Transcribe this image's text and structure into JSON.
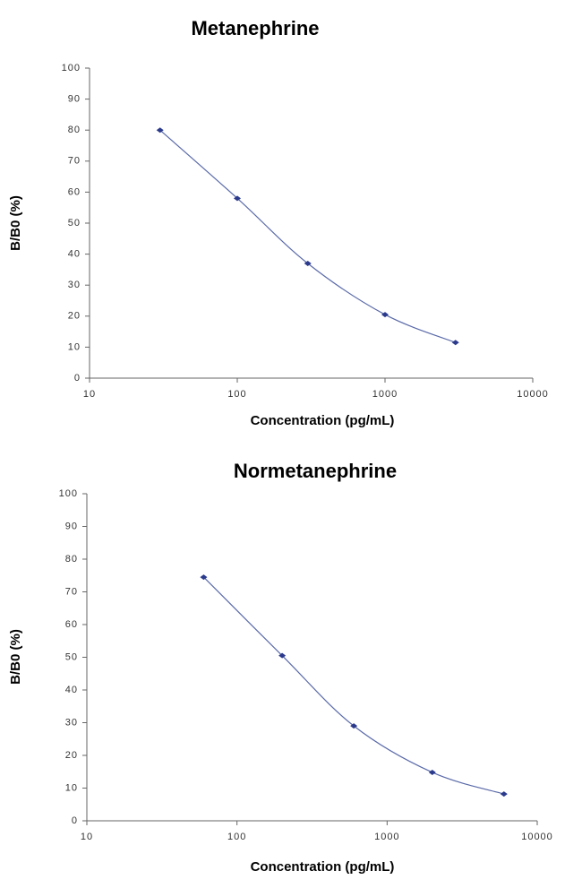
{
  "chart_data": [
    {
      "type": "line",
      "title": "Metanephrine",
      "x_label": "Concentration (pg/mL)",
      "y_label": "B/B0 (%)",
      "x": [
        30,
        100,
        300,
        1000,
        3000
      ],
      "values": [
        80,
        58,
        37,
        20.5,
        11.5
      ],
      "color": "#2b3a8c",
      "xscale": "log",
      "xlim": [
        10,
        10000
      ],
      "xticks": [
        10,
        100,
        1000,
        10000
      ],
      "ylim": [
        0,
        100
      ],
      "yticks": [
        0,
        10,
        20,
        30,
        40,
        50,
        60,
        70,
        80,
        90,
        100
      ],
      "grid": false
    },
    {
      "type": "line",
      "title": "Normetanephrine",
      "x_label": "Concentration (pg/mL)",
      "y_label": "B/B0 (%)",
      "x": [
        60,
        200,
        600,
        2000,
        6000
      ],
      "values": [
        74.5,
        50.5,
        29,
        14.8,
        8.2
      ],
      "color": "#2b3a8c",
      "xscale": "log",
      "xlim": [
        10,
        10000
      ],
      "xticks": [
        10,
        100,
        1000,
        10000
      ],
      "ylim": [
        0,
        100
      ],
      "yticks": [
        0,
        10,
        20,
        30,
        40,
        50,
        60,
        70,
        80,
        90,
        100
      ],
      "grid": false
    }
  ]
}
